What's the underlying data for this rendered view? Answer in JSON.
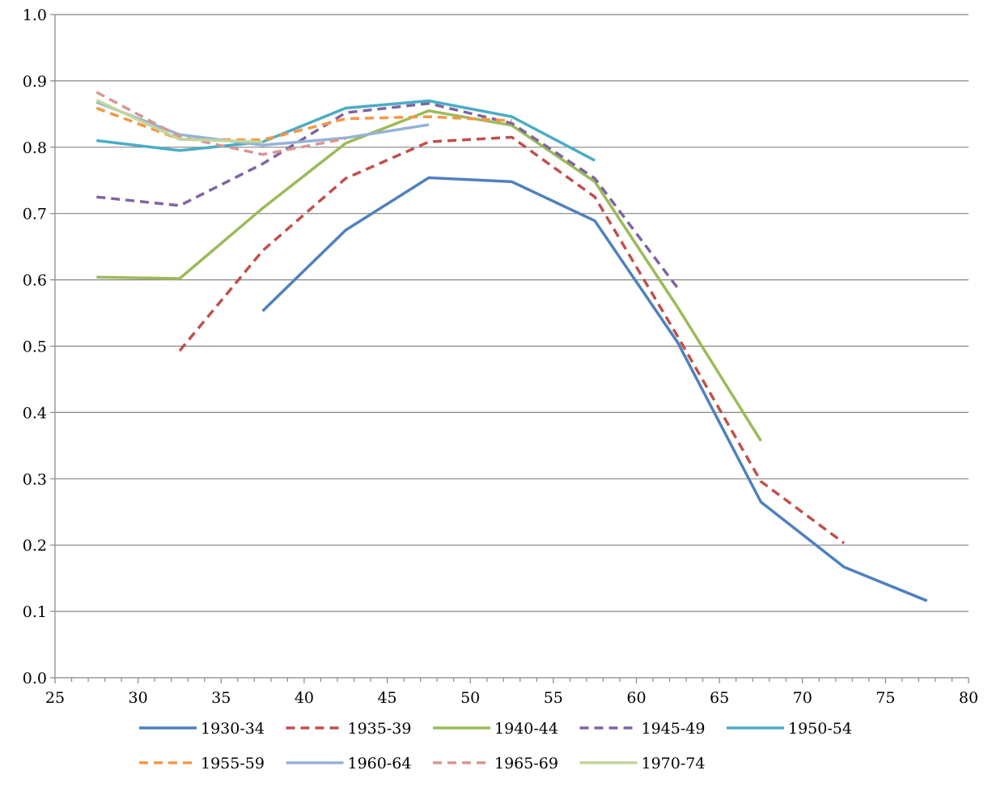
{
  "chart_data": {
    "type": "line",
    "title": "",
    "xlabel": "",
    "ylabel": "",
    "xlim": [
      25,
      80
    ],
    "ylim": [
      0.0,
      1.0
    ],
    "x_ticks": [
      "25",
      "30",
      "35",
      "40",
      "45",
      "50",
      "55",
      "60",
      "65",
      "70",
      "75",
      "80"
    ],
    "y_ticks": [
      "0.0",
      "0.1",
      "0.2",
      "0.3",
      "0.4",
      "0.5",
      "0.6",
      "0.7",
      "0.8",
      "0.9",
      "1.0"
    ],
    "grid": "horizontal",
    "legend_position": "bottom",
    "series": [
      {
        "name": "1930-34",
        "color": "#4f81bd",
        "dashed": false,
        "points": [
          [
            37.5,
            0.553
          ],
          [
            42.5,
            0.675
          ],
          [
            47.5,
            0.754
          ],
          [
            52.5,
            0.748
          ],
          [
            57.5,
            0.689
          ],
          [
            62.5,
            0.505
          ],
          [
            67.5,
            0.265
          ],
          [
            72.5,
            0.167
          ],
          [
            77.5,
            0.116
          ]
        ]
      },
      {
        "name": "1935-39",
        "color": "#c0504d",
        "dashed": true,
        "points": [
          [
            32.5,
            0.493
          ],
          [
            37.5,
            0.644
          ],
          [
            42.5,
            0.753
          ],
          [
            47.5,
            0.808
          ],
          [
            52.5,
            0.815
          ],
          [
            57.5,
            0.725
          ],
          [
            62.5,
            0.514
          ],
          [
            67.5,
            0.296
          ],
          [
            72.5,
            0.203
          ]
        ]
      },
      {
        "name": "1940-44",
        "color": "#9bbb59",
        "dashed": false,
        "points": [
          [
            27.5,
            0.604
          ],
          [
            32.5,
            0.602
          ],
          [
            37.5,
            0.708
          ],
          [
            42.5,
            0.806
          ],
          [
            47.5,
            0.855
          ],
          [
            52.5,
            0.833
          ],
          [
            57.5,
            0.748
          ],
          [
            62.5,
            0.558
          ],
          [
            67.5,
            0.357
          ]
        ]
      },
      {
        "name": "1945-49",
        "color": "#8064a2",
        "dashed": true,
        "points": [
          [
            27.5,
            0.725
          ],
          [
            32.5,
            0.712
          ],
          [
            37.5,
            0.775
          ],
          [
            42.5,
            0.852
          ],
          [
            47.5,
            0.866
          ],
          [
            52.5,
            0.836
          ],
          [
            57.5,
            0.753
          ],
          [
            62.5,
            0.587
          ]
        ]
      },
      {
        "name": "1950-54",
        "color": "#4bacc6",
        "dashed": false,
        "points": [
          [
            27.5,
            0.81
          ],
          [
            32.5,
            0.795
          ],
          [
            37.5,
            0.808
          ],
          [
            42.5,
            0.859
          ],
          [
            47.5,
            0.87
          ],
          [
            52.5,
            0.846
          ],
          [
            57.5,
            0.78
          ]
        ]
      },
      {
        "name": "1955-59",
        "color": "#f79646",
        "dashed": true,
        "points": [
          [
            27.5,
            0.859
          ],
          [
            32.5,
            0.812
          ],
          [
            37.5,
            0.811
          ],
          [
            42.5,
            0.843
          ],
          [
            47.5,
            0.846
          ],
          [
            52.5,
            0.84
          ]
        ]
      },
      {
        "name": "1960-64",
        "color": "#95b3d7",
        "dashed": false,
        "points": [
          [
            27.5,
            0.868
          ],
          [
            32.5,
            0.819
          ],
          [
            37.5,
            0.803
          ],
          [
            42.5,
            0.814
          ],
          [
            47.5,
            0.834
          ]
        ]
      },
      {
        "name": "1965-69",
        "color": "#d99694",
        "dashed": true,
        "points": [
          [
            27.5,
            0.883
          ],
          [
            32.5,
            0.816
          ],
          [
            37.5,
            0.789
          ],
          [
            42.5,
            0.813
          ]
        ]
      },
      {
        "name": "1970-74",
        "color": "#c3d69b",
        "dashed": false,
        "points": [
          [
            27.5,
            0.871
          ],
          [
            32.5,
            0.812
          ],
          [
            37.5,
            0.808
          ]
        ]
      }
    ]
  }
}
